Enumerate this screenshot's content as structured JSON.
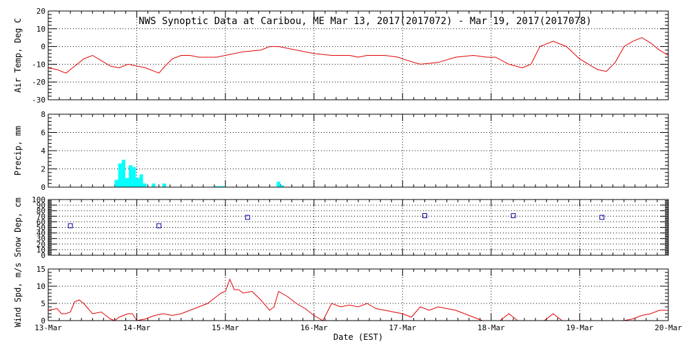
{
  "title": "NWS Synoptic Data at Caribou, ME   Mar 13, 2017(2017072) - Mar 19, 2017(2017078)",
  "colors": {
    "line": "#e00000",
    "precip": "#00ffff",
    "snow_marker": "#0000a0",
    "axes": "#000000"
  },
  "chart_data": [
    {
      "type": "line",
      "name": "air-temp",
      "ylabel": "Air Temp, Deg C",
      "xlim": [
        0,
        7
      ],
      "ylim": [
        -30,
        20
      ],
      "yticks": [
        -30,
        -20,
        -10,
        0,
        10,
        20
      ],
      "grid": true,
      "x": [
        0,
        0.1,
        0.2,
        0.3,
        0.4,
        0.5,
        0.6,
        0.7,
        0.8,
        0.9,
        1.0,
        1.1,
        1.2,
        1.25,
        1.3,
        1.4,
        1.5,
        1.6,
        1.7,
        1.8,
        1.9,
        2.0,
        2.2,
        2.4,
        2.5,
        2.6,
        2.8,
        3.0,
        3.2,
        3.4,
        3.5,
        3.6,
        3.8,
        3.95,
        4.0,
        4.2,
        4.4,
        4.6,
        4.8,
        4.95,
        5.05,
        5.2,
        5.35,
        5.45,
        5.55,
        5.7,
        5.85,
        6.0,
        6.1,
        6.2,
        6.3,
        6.4,
        6.5,
        6.6,
        6.7,
        6.8,
        6.9,
        7.0
      ],
      "y": [
        -12,
        -13,
        -15,
        -11,
        -7,
        -5,
        -8,
        -11,
        -12,
        -10,
        -11,
        -12,
        -14,
        -15,
        -12,
        -7,
        -5,
        -5,
        -6,
        -6,
        -6,
        -5,
        -3,
        -2,
        0,
        0,
        -2,
        -4,
        -5,
        -5,
        -6,
        -5,
        -5,
        -6,
        -7,
        -10,
        -9,
        -6,
        -5,
        -6,
        -6,
        -10,
        -12,
        -10,
        0,
        3,
        0,
        -7,
        -10,
        -13,
        -14,
        -9,
        0,
        3,
        5,
        2,
        -2,
        -5
      ]
    },
    {
      "type": "bar",
      "name": "precip",
      "ylabel": "Precip, mm",
      "xlim": [
        0,
        7
      ],
      "ylim": [
        0,
        8
      ],
      "yticks": [
        0,
        2,
        4,
        6,
        8
      ],
      "grid": true,
      "bars": [
        {
          "x": [
            0.75,
            0.79
          ],
          "value": 0.8
        },
        {
          "x": [
            0.79,
            0.83
          ],
          "value": 2.6
        },
        {
          "x": [
            0.83,
            0.87
          ],
          "value": 3.0
        },
        {
          "x": [
            0.87,
            0.91
          ],
          "value": 1.0
        },
        {
          "x": [
            0.91,
            0.95
          ],
          "value": 2.4
        },
        {
          "x": [
            0.95,
            0.99
          ],
          "value": 2.2
        },
        {
          "x": [
            0.99,
            1.03
          ],
          "value": 1.0
        },
        {
          "x": [
            1.03,
            1.07
          ],
          "value": 1.4
        },
        {
          "x": [
            1.07,
            1.11
          ],
          "value": 0.4
        },
        {
          "x": [
            1.17,
            1.21
          ],
          "value": 0.4
        },
        {
          "x": [
            1.29,
            1.33
          ],
          "value": 0.4
        },
        {
          "x": [
            1.88,
            2.0
          ],
          "value": 0.1
        },
        {
          "x": [
            2.58,
            2.62
          ],
          "value": 0.6
        },
        {
          "x": [
            2.62,
            2.66
          ],
          "value": 0.2
        }
      ]
    },
    {
      "type": "scatter",
      "name": "snow-depth",
      "ylabel": "Snow Dep, cm",
      "xlim": [
        0,
        7
      ],
      "ylim": [
        0,
        100
      ],
      "yticks": [
        0,
        10,
        20,
        30,
        40,
        50,
        60,
        70,
        80,
        90,
        100
      ],
      "grid": true,
      "x": [
        0.25,
        1.25,
        2.25,
        4.25,
        5.25,
        6.25
      ],
      "y": [
        53,
        53,
        68,
        71,
        71,
        68
      ]
    },
    {
      "type": "line",
      "name": "wind-speed",
      "ylabel": "Wind Spd, m/s",
      "xlabel": "Date (EST)",
      "xlim": [
        0,
        7
      ],
      "ylim": [
        0,
        15
      ],
      "yticks": [
        0,
        5,
        10,
        15
      ],
      "xticks": [
        0,
        1,
        2,
        3,
        4,
        5,
        6,
        7
      ],
      "xtick_labels": [
        "13-Mar",
        "14-Mar",
        "15-Mar",
        "16-Mar",
        "17-Mar",
        "18-Mar",
        "19-Mar",
        "20-Mar"
      ],
      "grid": true,
      "x": [
        0,
        0.1,
        0.15,
        0.2,
        0.25,
        0.3,
        0.35,
        0.4,
        0.5,
        0.6,
        0.7,
        0.75,
        0.8,
        0.9,
        0.95,
        1.0,
        1.1,
        1.2,
        1.3,
        1.4,
        1.5,
        1.6,
        1.7,
        1.8,
        1.9,
        1.95,
        2.0,
        2.05,
        2.1,
        2.15,
        2.2,
        2.3,
        2.4,
        2.5,
        2.55,
        2.6,
        2.7,
        2.8,
        2.9,
        3.0,
        3.1,
        3.2,
        3.3,
        3.4,
        3.5,
        3.6,
        3.7,
        3.8,
        3.9,
        4.0,
        4.1,
        4.2,
        4.3,
        4.4,
        4.5,
        4.6,
        4.7,
        4.8,
        4.9,
        5.0,
        5.1,
        5.2,
        5.3,
        5.4,
        5.5,
        5.6,
        5.7,
        5.8,
        5.9,
        6.0,
        6.1,
        6.2,
        6.3,
        6.4,
        6.5,
        6.6,
        6.7,
        6.8,
        6.9,
        7.0
      ],
      "y": [
        3,
        3.5,
        2,
        2,
        2.5,
        5.5,
        6,
        5,
        2,
        2.5,
        0.5,
        0,
        1,
        2,
        2,
        0,
        0.5,
        1.5,
        2,
        1.5,
        2,
        3,
        4,
        5,
        7,
        8,
        8.5,
        12,
        9,
        9,
        8,
        8.5,
        6,
        3,
        4,
        8.5,
        7,
        5,
        3.5,
        1.5,
        0,
        5,
        4,
        4.5,
        4,
        5,
        3.5,
        3,
        2.5,
        2,
        1,
        4,
        3,
        4,
        3.5,
        3,
        2,
        1,
        0,
        0,
        0,
        2,
        0,
        0,
        0,
        0,
        2,
        0,
        0,
        0,
        0,
        0,
        0,
        0,
        0,
        0.5,
        1.5,
        2,
        3,
        3
      ]
    }
  ]
}
